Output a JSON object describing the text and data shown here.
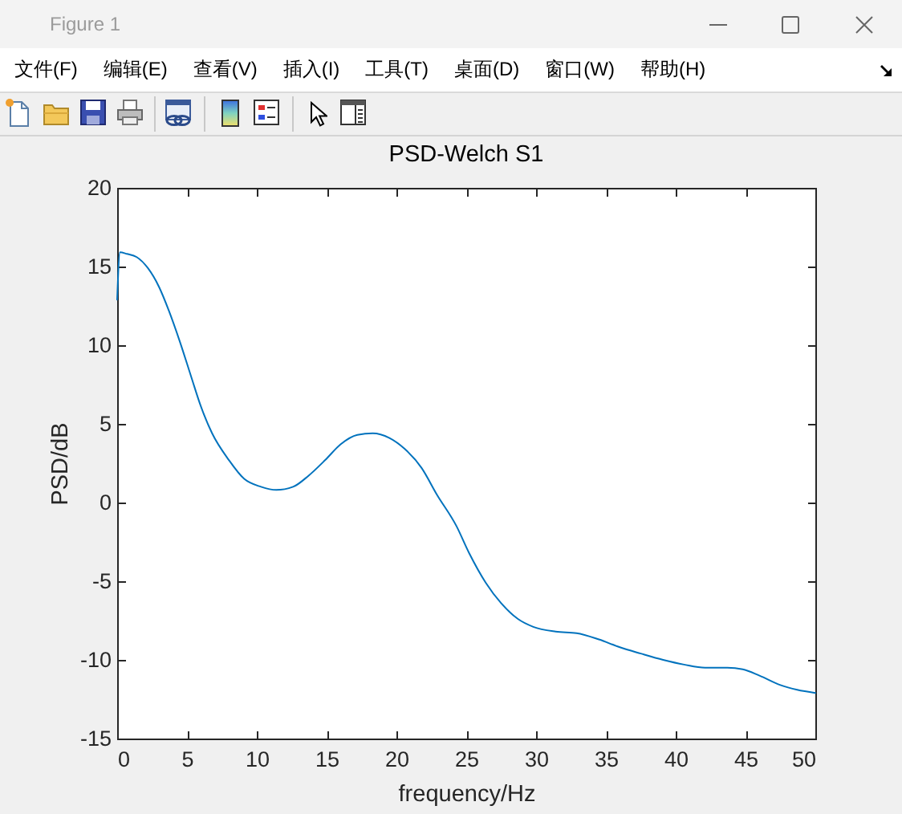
{
  "chart_data": {
    "type": "line",
    "title": "PSD-Welch S1",
    "xlabel": "frequency/Hz",
    "ylabel": "PSD/dB",
    "annotations": [
      "Figure 1",
      "文件(F)",
      "编辑(E)",
      "查看(V)",
      "插入(I)",
      "工具(T)",
      "桌面(D)",
      "窗口(W)",
      "帮助(H)"
    ],
    "x": [
      0,
      0.2,
      0.7,
      1.4,
      2.2,
      3.0,
      3.7,
      4.5,
      5.3,
      6.0,
      6.8,
      8.0,
      9.1,
      10.3,
      11.4,
      12.6,
      13.7,
      14.9,
      16.0,
      17.2,
      18.3,
      19.5,
      20.6,
      21.8,
      22.9,
      24.3,
      25.2,
      26.4,
      27.5,
      28.7,
      29.8,
      31.4,
      32.9,
      34.5,
      36.0,
      37.5,
      39.1,
      40.6,
      42.1,
      43.7,
      44.8,
      46.0,
      47.5,
      48.7,
      50
    ],
    "series": [
      {
        "color": "#0072bd",
        "values": [
          12.9,
          15.9,
          15.8,
          15.6,
          14.9,
          13.7,
          12.2,
          10.2,
          8.0,
          6.1,
          4.4,
          2.7,
          1.5,
          1.0,
          0.8,
          1.0,
          1.7,
          2.7,
          3.7,
          4.3,
          4.4,
          4.1,
          3.4,
          2.2,
          0.5,
          -1.5,
          -3.2,
          -5.1,
          -6.4,
          -7.4,
          -7.9,
          -8.2,
          -8.3,
          -8.7,
          -9.2,
          -9.6,
          -10.0,
          -10.3,
          -10.5,
          -10.5,
          -10.6,
          -11.0,
          -11.6,
          -11.9,
          -12.1
        ]
      }
    ],
    "xlim": [
      0,
      50
    ],
    "ylim": [
      -15,
      20
    ],
    "xticks": [
      0,
      5,
      10,
      15,
      20,
      25,
      30,
      35,
      40,
      45,
      50
    ],
    "yticks": [
      -15,
      -10,
      -5,
      0,
      5,
      10,
      15,
      20
    ]
  }
}
